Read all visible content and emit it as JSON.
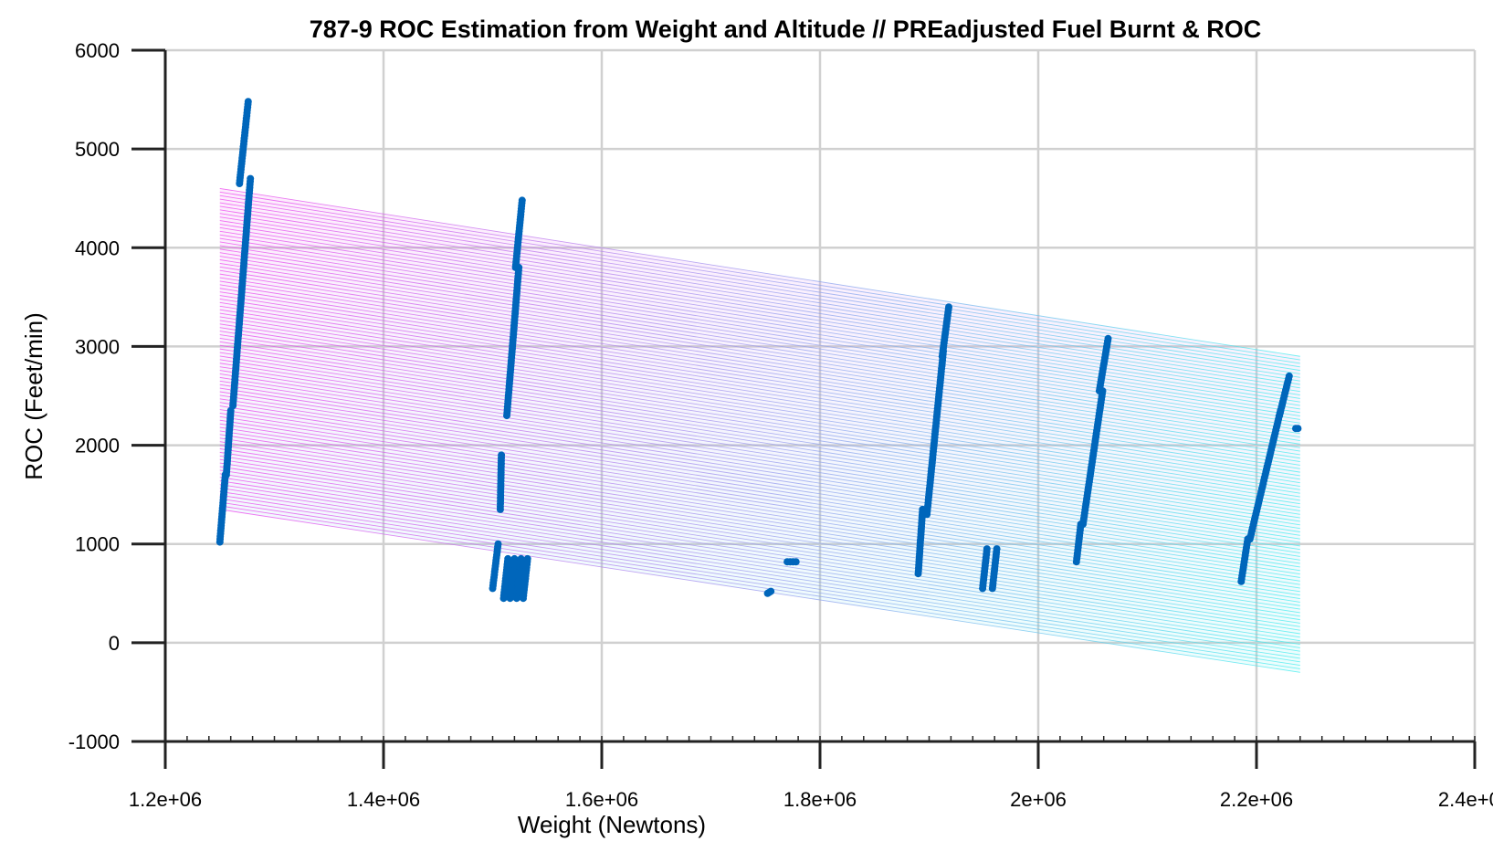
{
  "chart_data": {
    "type": "scatter",
    "title": "787-9 ROC Estimation from Weight and Altitude // PREadjusted Fuel Burnt & ROC",
    "xlabel": "Weight (Newtons)",
    "ylabel": "ROC (Feet/min)",
    "xlim": [
      1200000,
      2400000
    ],
    "ylim": [
      -1000,
      6000
    ],
    "x_ticks": [
      "1.2e+06",
      "1.4e+06",
      "1.6e+06",
      "1.8e+06",
      "2e+06",
      "2.2e+06",
      "2.4e+06"
    ],
    "y_ticks": [
      "-1000",
      "0",
      "1000",
      "2000",
      "3000",
      "4000",
      "5000",
      "6000"
    ],
    "grid": true,
    "surface": {
      "type": "mesh",
      "x_range": [
        1250000,
        2240000
      ],
      "corners": {
        "top_left": 4600,
        "top_right": 2900,
        "bottom_left": 1350,
        "bottom_right": -300
      },
      "color_top": "#ee44ee",
      "color_bottom": "#44eeee"
    },
    "series": [
      {
        "color": "#0066bb",
        "segments": [
          {
            "x0": 1250000,
            "y0": 1020,
            "x1": 1255000,
            "y1": 1700
          },
          {
            "x0": 1256000,
            "y0": 1700,
            "x1": 1260000,
            "y1": 2350
          },
          {
            "x0": 1262000,
            "y0": 2400,
            "x1": 1278000,
            "y1": 4700
          },
          {
            "x0": 1268000,
            "y0": 4650,
            "x1": 1276000,
            "y1": 5480
          },
          {
            "x0": 1500000,
            "y0": 550,
            "x1": 1505000,
            "y1": 1000
          },
          {
            "x0": 1507000,
            "y0": 1350,
            "x1": 1508000,
            "y1": 1900
          },
          {
            "x0": 1510000,
            "y0": 450,
            "x1": 1514000,
            "y1": 850
          },
          {
            "x0": 1516000,
            "y0": 450,
            "x1": 1520000,
            "y1": 850
          },
          {
            "x0": 1522000,
            "y0": 450,
            "x1": 1526000,
            "y1": 850
          },
          {
            "x0": 1528000,
            "y0": 450,
            "x1": 1532000,
            "y1": 850
          },
          {
            "x0": 1513000,
            "y0": 2300,
            "x1": 1524000,
            "y1": 3800
          },
          {
            "x0": 1521000,
            "y0": 3800,
            "x1": 1527000,
            "y1": 4480
          },
          {
            "x0": 1752000,
            "y0": 500,
            "x1": 1755000,
            "y1": 520
          },
          {
            "x0": 1770000,
            "y0": 820,
            "x1": 1778000,
            "y1": 820
          },
          {
            "x0": 1890000,
            "y0": 700,
            "x1": 1894000,
            "y1": 1350
          },
          {
            "x0": 1898000,
            "y0": 1300,
            "x1": 1913000,
            "y1": 2950
          },
          {
            "x0": 1912000,
            "y0": 2900,
            "x1": 1918000,
            "y1": 3400
          },
          {
            "x0": 1949000,
            "y0": 550,
            "x1": 1953000,
            "y1": 950
          },
          {
            "x0": 1958000,
            "y0": 550,
            "x1": 1962000,
            "y1": 950
          },
          {
            "x0": 2035000,
            "y0": 820,
            "x1": 2039000,
            "y1": 1200
          },
          {
            "x0": 2041000,
            "y0": 1200,
            "x1": 2059000,
            "y1": 2550
          },
          {
            "x0": 2056000,
            "y0": 2550,
            "x1": 2064000,
            "y1": 3080
          },
          {
            "x0": 2186000,
            "y0": 620,
            "x1": 2192000,
            "y1": 1050
          },
          {
            "x0": 2194000,
            "y0": 1050,
            "x1": 2222000,
            "y1": 2350
          },
          {
            "x0": 2221000,
            "y0": 2300,
            "x1": 2230000,
            "y1": 2700
          },
          {
            "x0": 2236000,
            "y0": 2170,
            "x1": 2238000,
            "y1": 2170
          }
        ]
      }
    ]
  }
}
